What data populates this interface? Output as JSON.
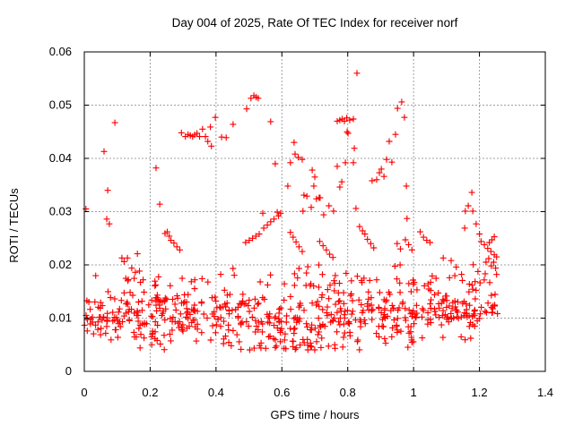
{
  "window": {
    "background": "#ffffff"
  },
  "chart_data": {
    "type": "scatter",
    "title": "Day 004 of 2025, Rate Of TEC Index for receiver norf",
    "xlabel": "GPS time / hours",
    "ylabel": "ROTI / TECUs",
    "xlim": [
      0,
      1.4
    ],
    "ylim": [
      0,
      0.06
    ],
    "x_data_range": [
      0,
      1.258
    ],
    "grid": true,
    "grid_style": "dashed",
    "legend": "none",
    "marker": {
      "shape": "plus",
      "color": "#ff0000",
      "size": 7
    },
    "colors": {
      "axis": "#000000",
      "grid": "#a0a0a0",
      "background": "#ffffff"
    },
    "xticks": [
      {
        "label": "0",
        "value": 0
      },
      {
        "label": "0.2",
        "value": 0.2
      },
      {
        "label": "0.4",
        "value": 0.4
      },
      {
        "label": "0.6",
        "value": 0.6
      },
      {
        "label": "0.8",
        "value": 0.8
      },
      {
        "label": "1",
        "value": 1
      },
      {
        "label": "1.2",
        "value": 1.2
      },
      {
        "label": "1.4",
        "value": 1.4
      }
    ],
    "yticks": [
      {
        "label": "0",
        "value": 0
      },
      {
        "label": "0.01",
        "value": 0.01
      },
      {
        "label": "0.02",
        "value": 0.02
      },
      {
        "label": "0.03",
        "value": 0.03
      },
      {
        "label": "0.04",
        "value": 0.04
      },
      {
        "label": "0.05",
        "value": 0.05
      },
      {
        "label": "0.06",
        "value": 0.06
      }
    ],
    "points_explicit": [
      [
        0.005,
        0.0305
      ],
      [
        0.06,
        0.0413
      ],
      [
        0.071,
        0.034
      ],
      [
        0.093,
        0.0467
      ],
      [
        0.068,
        0.0286
      ],
      [
        0.076,
        0.0277
      ],
      [
        0.114,
        0.0213
      ],
      [
        0.121,
        0.0206
      ],
      [
        0.131,
        0.0213
      ],
      [
        0.144,
        0.0194
      ],
      [
        0.155,
        0.0186
      ],
      [
        0.218,
        0.0382
      ],
      [
        0.229,
        0.0314
      ],
      [
        0.245,
        0.0259
      ],
      [
        0.252,
        0.0262
      ],
      [
        0.258,
        0.0254
      ],
      [
        0.263,
        0.0246
      ],
      [
        0.272,
        0.0241
      ],
      [
        0.281,
        0.0234
      ],
      [
        0.29,
        0.0228
      ],
      [
        0.295,
        0.0448
      ],
      [
        0.307,
        0.0441
      ],
      [
        0.315,
        0.0445
      ],
      [
        0.322,
        0.0443
      ],
      [
        0.329,
        0.0441
      ],
      [
        0.335,
        0.0444
      ],
      [
        0.342,
        0.0447
      ],
      [
        0.35,
        0.0441
      ],
      [
        0.359,
        0.0455
      ],
      [
        0.368,
        0.0441
      ],
      [
        0.375,
        0.0432
      ],
      [
        0.383,
        0.0459
      ],
      [
        0.386,
        0.0423
      ],
      [
        0.398,
        0.0477
      ],
      [
        0.417,
        0.044
      ],
      [
        0.431,
        0.0439
      ],
      [
        0.452,
        0.0464
      ],
      [
        0.49,
        0.0242
      ],
      [
        0.501,
        0.0246
      ],
      [
        0.511,
        0.025
      ],
      [
        0.521,
        0.0254
      ],
      [
        0.531,
        0.0258
      ],
      [
        0.545,
        0.0269
      ],
      [
        0.556,
        0.0275
      ],
      [
        0.566,
        0.0281
      ],
      [
        0.576,
        0.0286
      ],
      [
        0.59,
        0.0292
      ],
      [
        0.493,
        0.0493
      ],
      [
        0.506,
        0.0513
      ],
      [
        0.515,
        0.0518
      ],
      [
        0.522,
        0.0515
      ],
      [
        0.528,
        0.0513
      ],
      [
        0.542,
        0.0297
      ],
      [
        0.566,
        0.0469
      ],
      [
        0.58,
        0.039
      ],
      [
        0.586,
        0.0299
      ],
      [
        0.596,
        0.0297
      ],
      [
        0.618,
        0.0348
      ],
      [
        0.626,
        0.0392
      ],
      [
        0.637,
        0.043
      ],
      [
        0.64,
        0.0408
      ],
      [
        0.65,
        0.0402
      ],
      [
        0.662,
        0.0398
      ],
      [
        0.626,
        0.0261
      ],
      [
        0.634,
        0.0252
      ],
      [
        0.643,
        0.0243
      ],
      [
        0.652,
        0.0234
      ],
      [
        0.662,
        0.0225
      ],
      [
        0.664,
        0.0301
      ],
      [
        0.667,
        0.0331
      ],
      [
        0.676,
        0.0329
      ],
      [
        0.689,
        0.0308
      ],
      [
        0.692,
        0.0378
      ],
      [
        0.697,
        0.0348
      ],
      [
        0.7,
        0.0365
      ],
      [
        0.705,
        0.0324
      ],
      [
        0.713,
        0.0326
      ],
      [
        0.716,
        0.0326
      ],
      [
        0.715,
        0.0244
      ],
      [
        0.725,
        0.0236
      ],
      [
        0.735,
        0.0228
      ],
      [
        0.745,
        0.022
      ],
      [
        0.755,
        0.0214
      ],
      [
        0.727,
        0.0294
      ],
      [
        0.743,
        0.0311
      ],
      [
        0.757,
        0.0301
      ],
      [
        0.768,
        0.047
      ],
      [
        0.776,
        0.0472
      ],
      [
        0.783,
        0.0474
      ],
      [
        0.79,
        0.047
      ],
      [
        0.797,
        0.0476
      ],
      [
        0.806,
        0.0472
      ],
      [
        0.817,
        0.0474
      ],
      [
        0.798,
        0.045
      ],
      [
        0.801,
        0.0447
      ],
      [
        0.768,
        0.0385
      ],
      [
        0.776,
        0.0346
      ],
      [
        0.782,
        0.0356
      ],
      [
        0.793,
        0.0392
      ],
      [
        0.817,
        0.0392
      ],
      [
        0.82,
        0.0419
      ],
      [
        0.825,
        0.0306
      ],
      [
        0.828,
        0.056
      ],
      [
        0.836,
        0.0272
      ],
      [
        0.845,
        0.0264
      ],
      [
        0.852,
        0.0258
      ],
      [
        0.86,
        0.0248
      ],
      [
        0.87,
        0.024
      ],
      [
        0.879,
        0.0232
      ],
      [
        0.874,
        0.0358
      ],
      [
        0.888,
        0.036
      ],
      [
        0.896,
        0.0373
      ],
      [
        0.902,
        0.038
      ],
      [
        0.91,
        0.0366
      ],
      [
        0.918,
        0.0398
      ],
      [
        0.926,
        0.0432
      ],
      [
        0.934,
        0.0393
      ],
      [
        0.945,
        0.0445
      ],
      [
        0.951,
        0.0494
      ],
      [
        0.964,
        0.0506
      ],
      [
        0.972,
        0.0477
      ],
      [
        0.978,
        0.0348
      ],
      [
        0.95,
        0.024
      ],
      [
        0.96,
        0.023
      ],
      [
        0.975,
        0.0247
      ],
      [
        0.98,
        0.0287
      ],
      [
        0.985,
        0.0238
      ],
      [
        0.995,
        0.0228
      ],
      [
        0.994,
        0.0059
      ],
      [
        1.02,
        0.0262
      ],
      [
        1.03,
        0.0252
      ],
      [
        1.04,
        0.0246
      ],
      [
        1.05,
        0.0242
      ],
      [
        1.09,
        0.0213
      ],
      [
        1.114,
        0.0208
      ],
      [
        1.155,
        0.0269
      ],
      [
        1.157,
        0.0301
      ],
      [
        1.166,
        0.0311
      ],
      [
        1.177,
        0.0336
      ],
      [
        1.18,
        0.0301
      ],
      [
        1.19,
        0.0277
      ],
      [
        1.2,
        0.0258
      ],
      [
        1.205,
        0.0244
      ],
      [
        1.215,
        0.0238
      ],
      [
        1.225,
        0.0231
      ],
      [
        1.235,
        0.0225
      ],
      [
        1.245,
        0.0219
      ],
      [
        1.22,
        0.0205
      ],
      [
        1.228,
        0.0212
      ],
      [
        1.236,
        0.0198
      ],
      [
        1.243,
        0.0205
      ],
      [
        1.249,
        0.0194
      ],
      [
        1.252,
        0.0215
      ],
      [
        1.245,
        0.0253
      ],
      [
        1.238,
        0.0247
      ],
      [
        1.23,
        0.0242
      ],
      [
        1.252,
        0.0182
      ]
    ],
    "generated": {
      "seed": 1234,
      "band": {
        "count": 580,
        "x_max": 1.255,
        "y_min": 0.004,
        "y_max": 0.019,
        "profile": [
          [
            0.0,
            0.01,
            0.0032
          ],
          [
            0.1,
            0.01,
            0.0032
          ],
          [
            0.2,
            0.0107,
            0.0034
          ],
          [
            0.3,
            0.0105,
            0.0036
          ],
          [
            0.4,
            0.01,
            0.0038
          ],
          [
            0.5,
            0.0094,
            0.004
          ],
          [
            0.6,
            0.0099,
            0.004
          ],
          [
            0.7,
            0.0094,
            0.004
          ],
          [
            0.8,
            0.0104,
            0.0038
          ],
          [
            0.9,
            0.0107,
            0.0038
          ],
          [
            1.0,
            0.0104,
            0.0036
          ],
          [
            1.1,
            0.0107,
            0.0032
          ],
          [
            1.2,
            0.0114,
            0.003
          ],
          [
            1.26,
            0.0117,
            0.003
          ]
        ]
      },
      "low_dip": {
        "count": 14,
        "x_range": [
          0.5,
          0.72
        ],
        "y_range": [
          0.004,
          0.0062
        ]
      },
      "mid": {
        "count": 70,
        "x_max": 1.255,
        "x_bias": 0.85,
        "y_base": 0.016,
        "y_spread": 0.0032,
        "y_max": 0.0235
      }
    }
  }
}
